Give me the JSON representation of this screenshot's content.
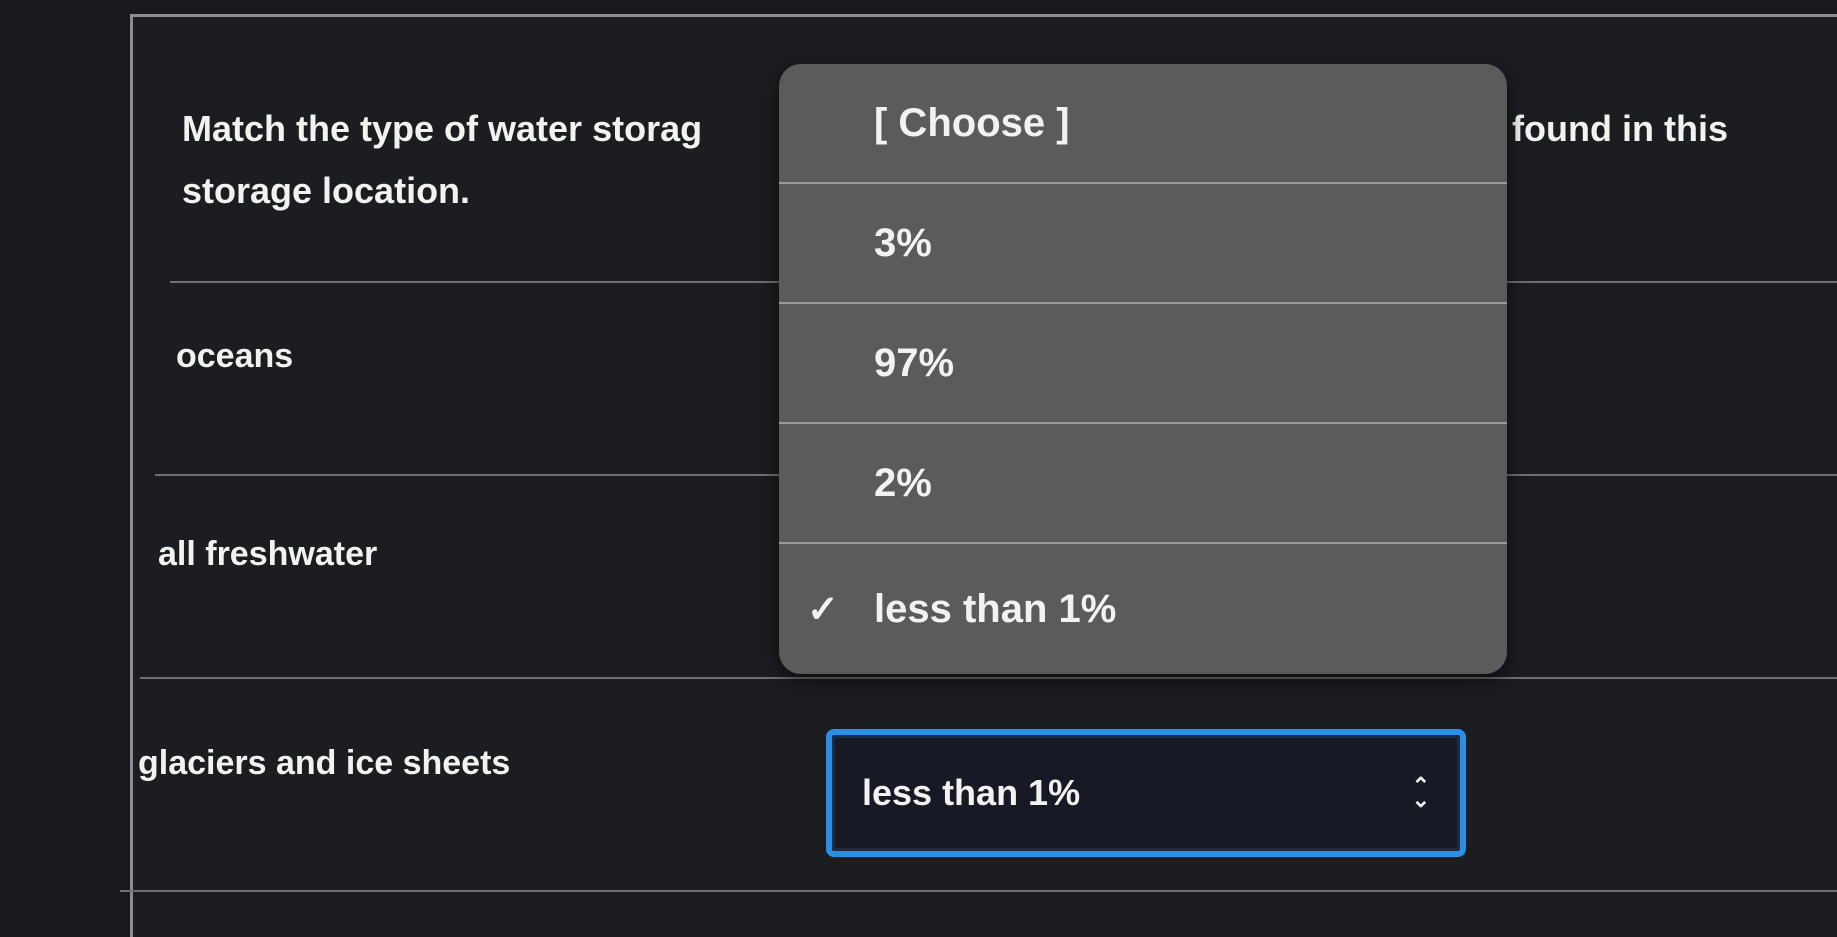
{
  "question": {
    "text_start": "Match the type of water storag",
    "text_end": "s found in this",
    "text_line2": "storage location."
  },
  "rows": [
    {
      "label": "oceans"
    },
    {
      "label": "all freshwater"
    },
    {
      "label": "glaciers and ice sheets"
    }
  ],
  "dropdown": {
    "options": [
      {
        "label": "[ Choose ]",
        "selected": false
      },
      {
        "label": "3%",
        "selected": false
      },
      {
        "label": "97%",
        "selected": false
      },
      {
        "label": "2%",
        "selected": false
      },
      {
        "label": "less than 1%",
        "selected": true
      }
    ],
    "check_icon": "✓"
  },
  "select": {
    "value": "less than 1%",
    "icon": "chevron-up-down-icon"
  },
  "colors": {
    "focus_border": "#2a8fe6",
    "popup_bg": "#5b5b5c",
    "page_bg": "#17191d"
  }
}
